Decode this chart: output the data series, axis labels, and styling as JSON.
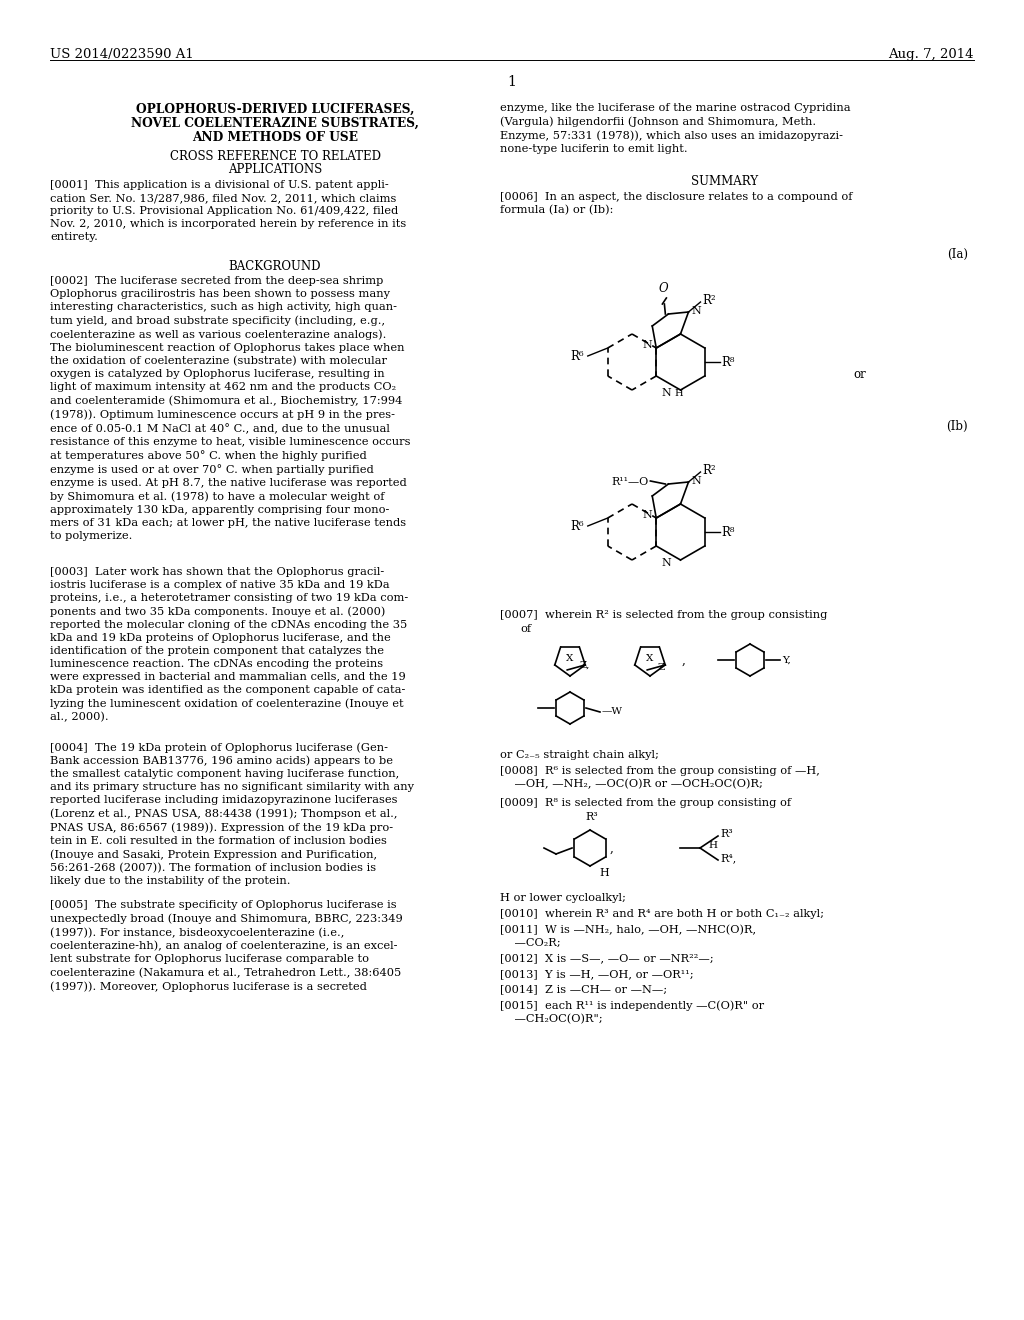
{
  "header_left": "US 2014/0223590 A1",
  "header_right": "Aug. 7, 2014",
  "page_number": "1",
  "background_color": "#ffffff"
}
